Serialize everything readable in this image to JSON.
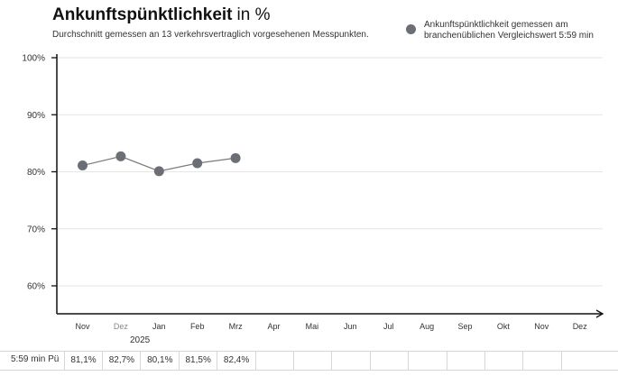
{
  "header": {
    "title_main": "Ankunftspünktlichkeit",
    "title_unit": "in %",
    "subtitle": "Durchschnitt gemessen an 13 verkehrsvertraglich vorgesehenen Messpunkten."
  },
  "legend": {
    "text": "Ankunftspünktlichkeit gemessen am branchenüblichen Vergleichswert 5:59 min"
  },
  "colors": {
    "point": "#6b6f75",
    "line": "#7a7a7a",
    "axis": "#111111",
    "grid": "#e6e6e6"
  },
  "chart_data": {
    "type": "line",
    "categories": [
      "Nov",
      "Dez",
      "Jan",
      "Feb",
      "Mrz",
      "Apr",
      "Mai",
      "Jun",
      "Jul",
      "Aug",
      "Sep",
      "Okt",
      "Nov",
      "Dez"
    ],
    "year_label": "2025",
    "series": [
      {
        "name": "Ankunftspünktlichkeit gemessen am branchenüblichen Vergleichswert 5:59 min",
        "values": [
          81.1,
          82.7,
          80.1,
          81.5,
          82.4,
          null,
          null,
          null,
          null,
          null,
          null,
          null,
          null,
          null
        ]
      }
    ],
    "yticks": [
      "100%",
      "90%",
      "80%",
      "70%",
      "60%"
    ],
    "ylim": [
      55,
      100
    ],
    "grid": true
  },
  "table": {
    "row_label": "5:59 min Pü",
    "values": [
      "81,1%",
      "82,7%",
      "80,1%",
      "81,5%",
      "82,4%",
      "",
      "",
      "",
      "",
      "",
      "",
      "",
      "",
      ""
    ]
  }
}
